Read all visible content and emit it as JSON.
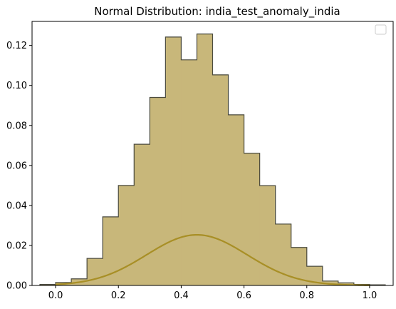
{
  "chart_data": {
    "type": "histogram",
    "title": "Normal Distribution: india_test_anomaly_india",
    "xlabel": "",
    "ylabel": "",
    "xlim": [
      -0.075,
      1.075
    ],
    "ylim": [
      0,
      0.132
    ],
    "xticks": [
      0.0,
      0.2,
      0.4,
      0.6,
      0.8,
      1.0
    ],
    "xtick_labels": [
      "0.0",
      "0.2",
      "0.4",
      "0.6",
      "0.8",
      "1.0"
    ],
    "yticks": [
      0.0,
      0.02,
      0.04,
      0.06,
      0.08,
      0.1,
      0.12
    ],
    "ytick_labels": [
      "0.00",
      "0.02",
      "0.04",
      "0.06",
      "0.08",
      "0.10",
      "0.12"
    ],
    "grid": false,
    "legend": {
      "placement": "upper-right",
      "entries": []
    },
    "bins": {
      "edges": [
        -0.05,
        0.0,
        0.05,
        0.1,
        0.15,
        0.2,
        0.25,
        0.3,
        0.35,
        0.4,
        0.45,
        0.5,
        0.55,
        0.6,
        0.65,
        0.7,
        0.75,
        0.8,
        0.85,
        0.9,
        0.95,
        1.0,
        1.05
      ],
      "values": [
        0.0005,
        0.0015,
        0.0033,
        0.0135,
        0.0343,
        0.05,
        0.0706,
        0.094,
        0.1242,
        0.1128,
        0.1257,
        0.1053,
        0.0853,
        0.0661,
        0.0499,
        0.0307,
        0.019,
        0.0096,
        0.0022,
        0.0013,
        0.0005,
        0.0003
      ]
    },
    "curve": {
      "type": "normal-pdf",
      "mean": 0.45,
      "peak": 0.0253,
      "std": 0.16,
      "x_range": [
        0.0,
        1.0
      ]
    },
    "colors": {
      "fill": "#c8b77a",
      "edge": "#4a4a3e",
      "curve": "#a88f26",
      "axis": "#000000"
    }
  }
}
